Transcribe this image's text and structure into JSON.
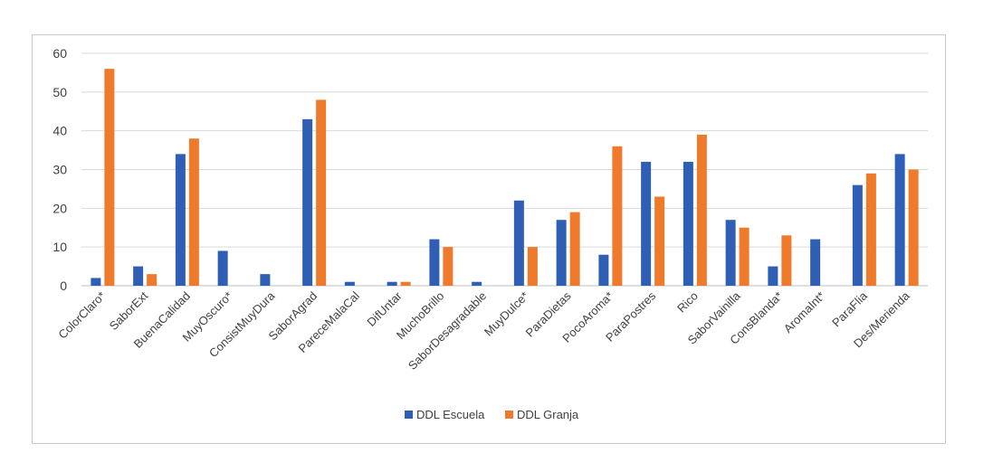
{
  "chart_data": {
    "type": "bar",
    "categories": [
      "ColorClaro*",
      "SaborExt",
      "BuenaCalidad",
      "MuyOscuro*",
      "ConsistMuyDura",
      "SaborAgrad",
      "PareceMalaCal",
      "DifUntar",
      "MuchoBrillo",
      "SaborDesagradable",
      "MuyDulce*",
      "ParaDietas",
      "PocoAroma*",
      "ParaPostres",
      "Rico",
      "SaborVainilla",
      "ConsBlanda*",
      "AromaInt*",
      "ParaFlia",
      "Des/Merienda"
    ],
    "series": [
      {
        "name": "DDL Escuela",
        "color": "#2e5fb4",
        "values": [
          2,
          5,
          34,
          9,
          3,
          43,
          1,
          1,
          12,
          1,
          22,
          17,
          8,
          32,
          32,
          17,
          5,
          12,
          26,
          34
        ]
      },
      {
        "name": "DDL Granja",
        "color": "#ef7a2c",
        "values": [
          56,
          3,
          38,
          0,
          0,
          48,
          0,
          1,
          10,
          0,
          10,
          19,
          36,
          23,
          39,
          15,
          13,
          0,
          29,
          30
        ]
      }
    ],
    "ylim": [
      0,
      60
    ],
    "yticks": [
      "0",
      "10",
      "20",
      "30",
      "40",
      "50",
      "60"
    ],
    "grid": true,
    "legend_position": "bottom-center",
    "title": "",
    "xlabel": "",
    "ylabel": ""
  }
}
